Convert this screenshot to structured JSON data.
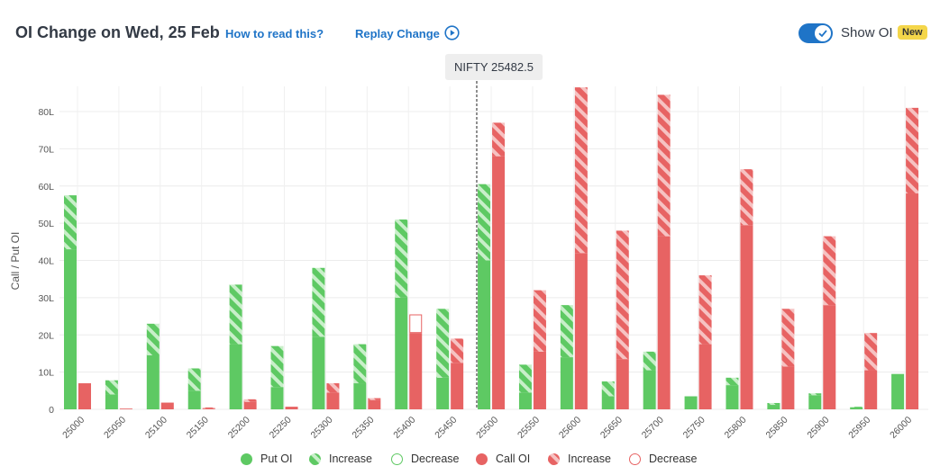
{
  "header": {
    "title": "OI Change on Wed, 25 Feb",
    "how_to_read": "How to read this?",
    "replay": "Replay Change",
    "show_oi": "Show OI",
    "badge": "New"
  },
  "spot_label": "NIFTY 25482.5",
  "colors": {
    "put": "#5ec963",
    "put_light": "#b2e6b4",
    "call": "#e76363",
    "call_light": "#f2b0b0",
    "accent": "#1f74c7",
    "badge": "#f4d64a"
  },
  "chart_data": {
    "type": "bar",
    "ylabel": "Call / Put OI",
    "ylim": [
      0,
      80
    ],
    "yticks": [
      "0",
      "10L",
      "20L",
      "30L",
      "40L",
      "50L",
      "60L",
      "70L",
      "80L"
    ],
    "spot": 25482.5,
    "categories": [
      "25000",
      "25050",
      "25100",
      "25150",
      "25200",
      "25250",
      "25300",
      "25350",
      "25400",
      "25450",
      "25500",
      "25550",
      "25600",
      "25650",
      "25700",
      "25750",
      "25800",
      "25850",
      "25900",
      "25950",
      "26000"
    ],
    "series": [
      {
        "name": "Put OI",
        "values": [
          43,
          4,
          14.5,
          5,
          17.5,
          6,
          19.5,
          7,
          30,
          8.5,
          40,
          4.5,
          14,
          3.5,
          10.5,
          3.5,
          6.5,
          1.2,
          3.8,
          0.5,
          9.5
        ]
      },
      {
        "name": "Increase",
        "values": [
          14.5,
          3.8,
          8.5,
          6,
          16,
          11,
          18.5,
          10.5,
          21,
          18.5,
          20.5,
          7.5,
          14,
          4,
          5,
          0,
          2,
          0.5,
          0.5,
          0.2,
          0
        ]
      },
      {
        "name": "Decrease",
        "values": [
          0,
          0,
          0,
          0,
          0,
          0,
          0,
          0,
          0,
          0,
          0,
          0,
          0,
          0,
          0,
          0,
          0,
          0,
          0,
          0,
          0
        ]
      },
      {
        "name": "Call OI",
        "values": [
          7,
          0.2,
          1.8,
          0.2,
          2,
          0.7,
          4.5,
          2.5,
          20.5,
          12.5,
          68,
          15.5,
          42,
          13.5,
          46.5,
          17.5,
          49.5,
          11.5,
          28,
          10.5,
          58
        ]
      },
      {
        "name": "Increase",
        "values": [
          0,
          0,
          0,
          0.3,
          0.7,
          0,
          2.5,
          0.5,
          0,
          6.5,
          9,
          16.5,
          44.5,
          34.5,
          38,
          18.5,
          15,
          15.5,
          18.5,
          10,
          23
        ]
      },
      {
        "name": "Decrease",
        "values": [
          0,
          0,
          0,
          0,
          0,
          0,
          0,
          0,
          5,
          0,
          0,
          0,
          0,
          0,
          0,
          0,
          0,
          0,
          0,
          0,
          0
        ]
      }
    ],
    "legend": [
      "Put OI",
      "Increase",
      "Decrease",
      "Call OI",
      "Increase",
      "Decrease"
    ],
    "legend_position": "bottom",
    "grid": true
  }
}
